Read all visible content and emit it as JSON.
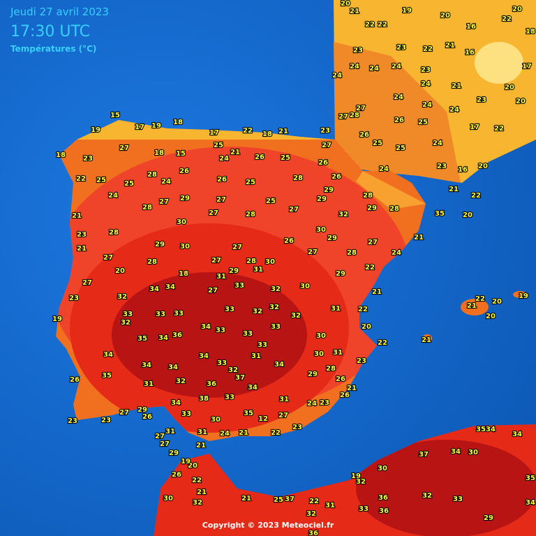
{
  "header": {
    "date": "Jeudi 27 avril 2023",
    "time": "17:30 UTC",
    "parameter": "Températures (°C)"
  },
  "footer": {
    "copyright": "Copyright © 2023 Meteociel.fr"
  },
  "labels": [
    20,
    21,
    22,
    22,
    19,
    20,
    16,
    20,
    22,
    18,
    23,
    23,
    22,
    21,
    16,
    17,
    24,
    24,
    24,
    23,
    24,
    24,
    21,
    23,
    20,
    27,
    24,
    24,
    24,
    20,
    27,
    28,
    26,
    25,
    17,
    22,
    26,
    25,
    25,
    24,
    15,
    19,
    17,
    19,
    18,
    17,
    22,
    18,
    21,
    23,
    18,
    23,
    27,
    18,
    15,
    25,
    21,
    24,
    26,
    25,
    27,
    26,
    24,
    23,
    16,
    20,
    22,
    25,
    25,
    28,
    24,
    26,
    26,
    25,
    28,
    26,
    24,
    28,
    27,
    29,
    27,
    25,
    29,
    28,
    21,
    22,
    21,
    27,
    28,
    27,
    29,
    32,
    29,
    28,
    21,
    35,
    20,
    30,
    28,
    30,
    23,
    21,
    29,
    30,
    27,
    26,
    29,
    28,
    27,
    24,
    27,
    28,
    27,
    28,
    30,
    27,
    20,
    18,
    31,
    29,
    31,
    22,
    27,
    34,
    34,
    27,
    33,
    32,
    30,
    29,
    21,
    23,
    32,
    33,
    33,
    33,
    32,
    32,
    32,
    31,
    22,
    19,
    33,
    32,
    34,
    33,
    33,
    33,
    20,
    35,
    34,
    36,
    30,
    33,
    31,
    22,
    34,
    34,
    33,
    31,
    34,
    30,
    28,
    34,
    34,
    32,
    23,
    37,
    35,
    26,
    32,
    29,
    26,
    31,
    36,
    34,
    21,
    38,
    33,
    31,
    24,
    23,
    26,
    34,
    29,
    33,
    27,
    26,
    35,
    12,
    27,
    30,
    23,
    23,
    23,
    31,
    31,
    24,
    21,
    22,
    27,
    27,
    21,
    29,
    20,
    19,
    26,
    22,
    21,
    30,
    32,
    21,
    25,
    37,
    22,
    31,
    32,
    19,
    32,
    30,
    37,
    34,
    30,
    34,
    36,
    32,
    33,
    33,
    36,
    36,
    35,
    34,
    29,
    35,
    34,
    21,
    22,
    20,
    19,
    20,
    21
  ]
}
